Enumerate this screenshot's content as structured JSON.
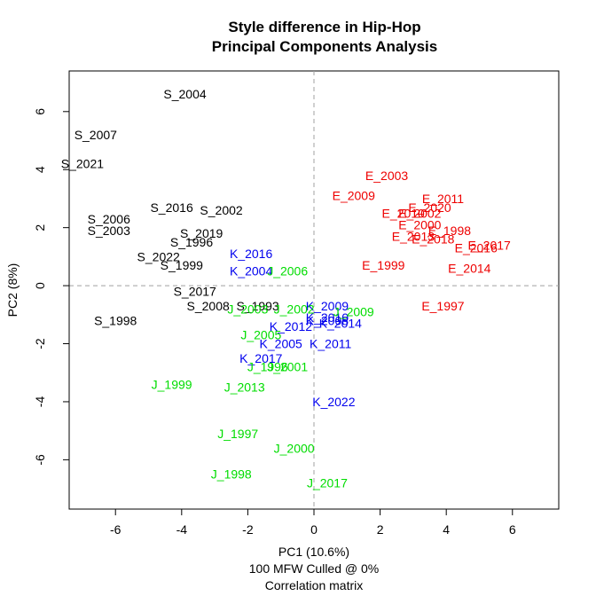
{
  "chart_data": {
    "type": "scatter",
    "title": "Style difference in Hip-Hop",
    "subtitle": "Principal Components Analysis",
    "xlabel": "PC1 (10.6%)",
    "xlabel_line2": "100 MFW  Culled @ 0%",
    "xlabel_line3": "Correlation matrix",
    "ylabel": "PC2 (8%)",
    "xlim": [
      -7.4,
      7.4
    ],
    "ylim": [
      -7.7,
      7.4
    ],
    "xticks": [
      -6,
      -4,
      -2,
      0,
      2,
      4,
      6
    ],
    "yticks": [
      -6,
      -4,
      -2,
      0,
      2,
      4,
      6
    ],
    "grid": false,
    "reference_lines": {
      "x": 0,
      "y": 0,
      "style": "dashed",
      "color": "#a0a0a0"
    },
    "colors": {
      "S": "#000000",
      "E": "#ee0000",
      "K": "#0000ee",
      "J": "#00dd00"
    },
    "series": [
      {
        "group": "S",
        "points": [
          {
            "label": "S_2004",
            "x": -3.9,
            "y": 6.6
          },
          {
            "label": "S_2007",
            "x": -6.6,
            "y": 5.2
          },
          {
            "label": "S_2021",
            "x": -7.0,
            "y": 4.2
          },
          {
            "label": "S_2016",
            "x": -4.3,
            "y": 2.7
          },
          {
            "label": "S_2002",
            "x": -2.8,
            "y": 2.6
          },
          {
            "label": "S_2006",
            "x": -6.2,
            "y": 2.3
          },
          {
            "label": "S_2003",
            "x": -6.2,
            "y": 1.9
          },
          {
            "label": "S_2019",
            "x": -3.4,
            "y": 1.8
          },
          {
            "label": "S_1996",
            "x": -3.7,
            "y": 1.5
          },
          {
            "label": "S_2022",
            "x": -4.7,
            "y": 1.0
          },
          {
            "label": "S_1999",
            "x": -4.0,
            "y": 0.7
          },
          {
            "label": "S_2017",
            "x": -3.6,
            "y": -0.2
          },
          {
            "label": "S_2008",
            "x": -3.2,
            "y": -0.7
          },
          {
            "label": "S_1993",
            "x": -1.7,
            "y": -0.7
          },
          {
            "label": "S_1998",
            "x": -6.0,
            "y": -1.2
          }
        ]
      },
      {
        "group": "E",
        "points": [
          {
            "label": "E_2003",
            "x": 2.2,
            "y": 3.8
          },
          {
            "label": "E_2009",
            "x": 1.2,
            "y": 3.1
          },
          {
            "label": "E_2011",
            "x": 3.9,
            "y": 3.0
          },
          {
            "label": "E_2020",
            "x": 3.5,
            "y": 2.7
          },
          {
            "label": "E_2002",
            "x": 3.2,
            "y": 2.5
          },
          {
            "label": "E_2010",
            "x": 2.7,
            "y": 2.5
          },
          {
            "label": "E_2000",
            "x": 3.2,
            "y": 2.1
          },
          {
            "label": "E_1998",
            "x": 4.1,
            "y": 1.9
          },
          {
            "label": "E_2013",
            "x": 3.0,
            "y": 1.7
          },
          {
            "label": "E_2018",
            "x": 3.6,
            "y": 1.6
          },
          {
            "label": "E_2017",
            "x": 5.3,
            "y": 1.4
          },
          {
            "label": "E_2016",
            "x": 4.9,
            "y": 1.3
          },
          {
            "label": "E_1999",
            "x": 2.1,
            "y": 0.7
          },
          {
            "label": "E_2014",
            "x": 4.7,
            "y": 0.6
          },
          {
            "label": "E_1997",
            "x": 3.9,
            "y": -0.7
          }
        ]
      },
      {
        "group": "K",
        "points": [
          {
            "label": "K_2016",
            "x": -1.9,
            "y": 1.1
          },
          {
            "label": "K_2004",
            "x": -1.9,
            "y": 0.5
          },
          {
            "label": "K_2009",
            "x": 0.4,
            "y": -0.7
          },
          {
            "label": "K_2010",
            "x": 0.4,
            "y": -1.1
          },
          {
            "label": "K_2008",
            "x": 0.4,
            "y": -1.2
          },
          {
            "label": "K_2014",
            "x": 0.8,
            "y": -1.3
          },
          {
            "label": "K_2012",
            "x": -0.7,
            "y": -1.4
          },
          {
            "label": "K_2005",
            "x": -1.0,
            "y": -2.0
          },
          {
            "label": "K_2011",
            "x": 0.5,
            "y": -2.0
          },
          {
            "label": "K_2017",
            "x": -1.6,
            "y": -2.5
          },
          {
            "label": "K_2022",
            "x": 0.6,
            "y": -4.0
          }
        ]
      },
      {
        "group": "J",
        "points": [
          {
            "label": "J_2006",
            "x": -0.8,
            "y": 0.5
          },
          {
            "label": "J_2002",
            "x": -0.6,
            "y": -0.8
          },
          {
            "label": "J_2009",
            "x": 1.2,
            "y": -0.9
          },
          {
            "label": "J_2003",
            "x": -2.0,
            "y": -0.8
          },
          {
            "label": "J_2005",
            "x": -1.6,
            "y": -1.7
          },
          {
            "label": "J_2001",
            "x": -0.8,
            "y": -2.8
          },
          {
            "label": "J_1996",
            "x": -1.4,
            "y": -2.8
          },
          {
            "label": "J_1999",
            "x": -4.3,
            "y": -3.4
          },
          {
            "label": "J_2013",
            "x": -2.1,
            "y": -3.5
          },
          {
            "label": "J_1997",
            "x": -2.3,
            "y": -5.1
          },
          {
            "label": "J_2000",
            "x": -0.6,
            "y": -5.6
          },
          {
            "label": "J_1998",
            "x": -2.5,
            "y": -6.5
          },
          {
            "label": "J_2017",
            "x": 0.4,
            "y": -6.8
          }
        ]
      }
    ]
  }
}
